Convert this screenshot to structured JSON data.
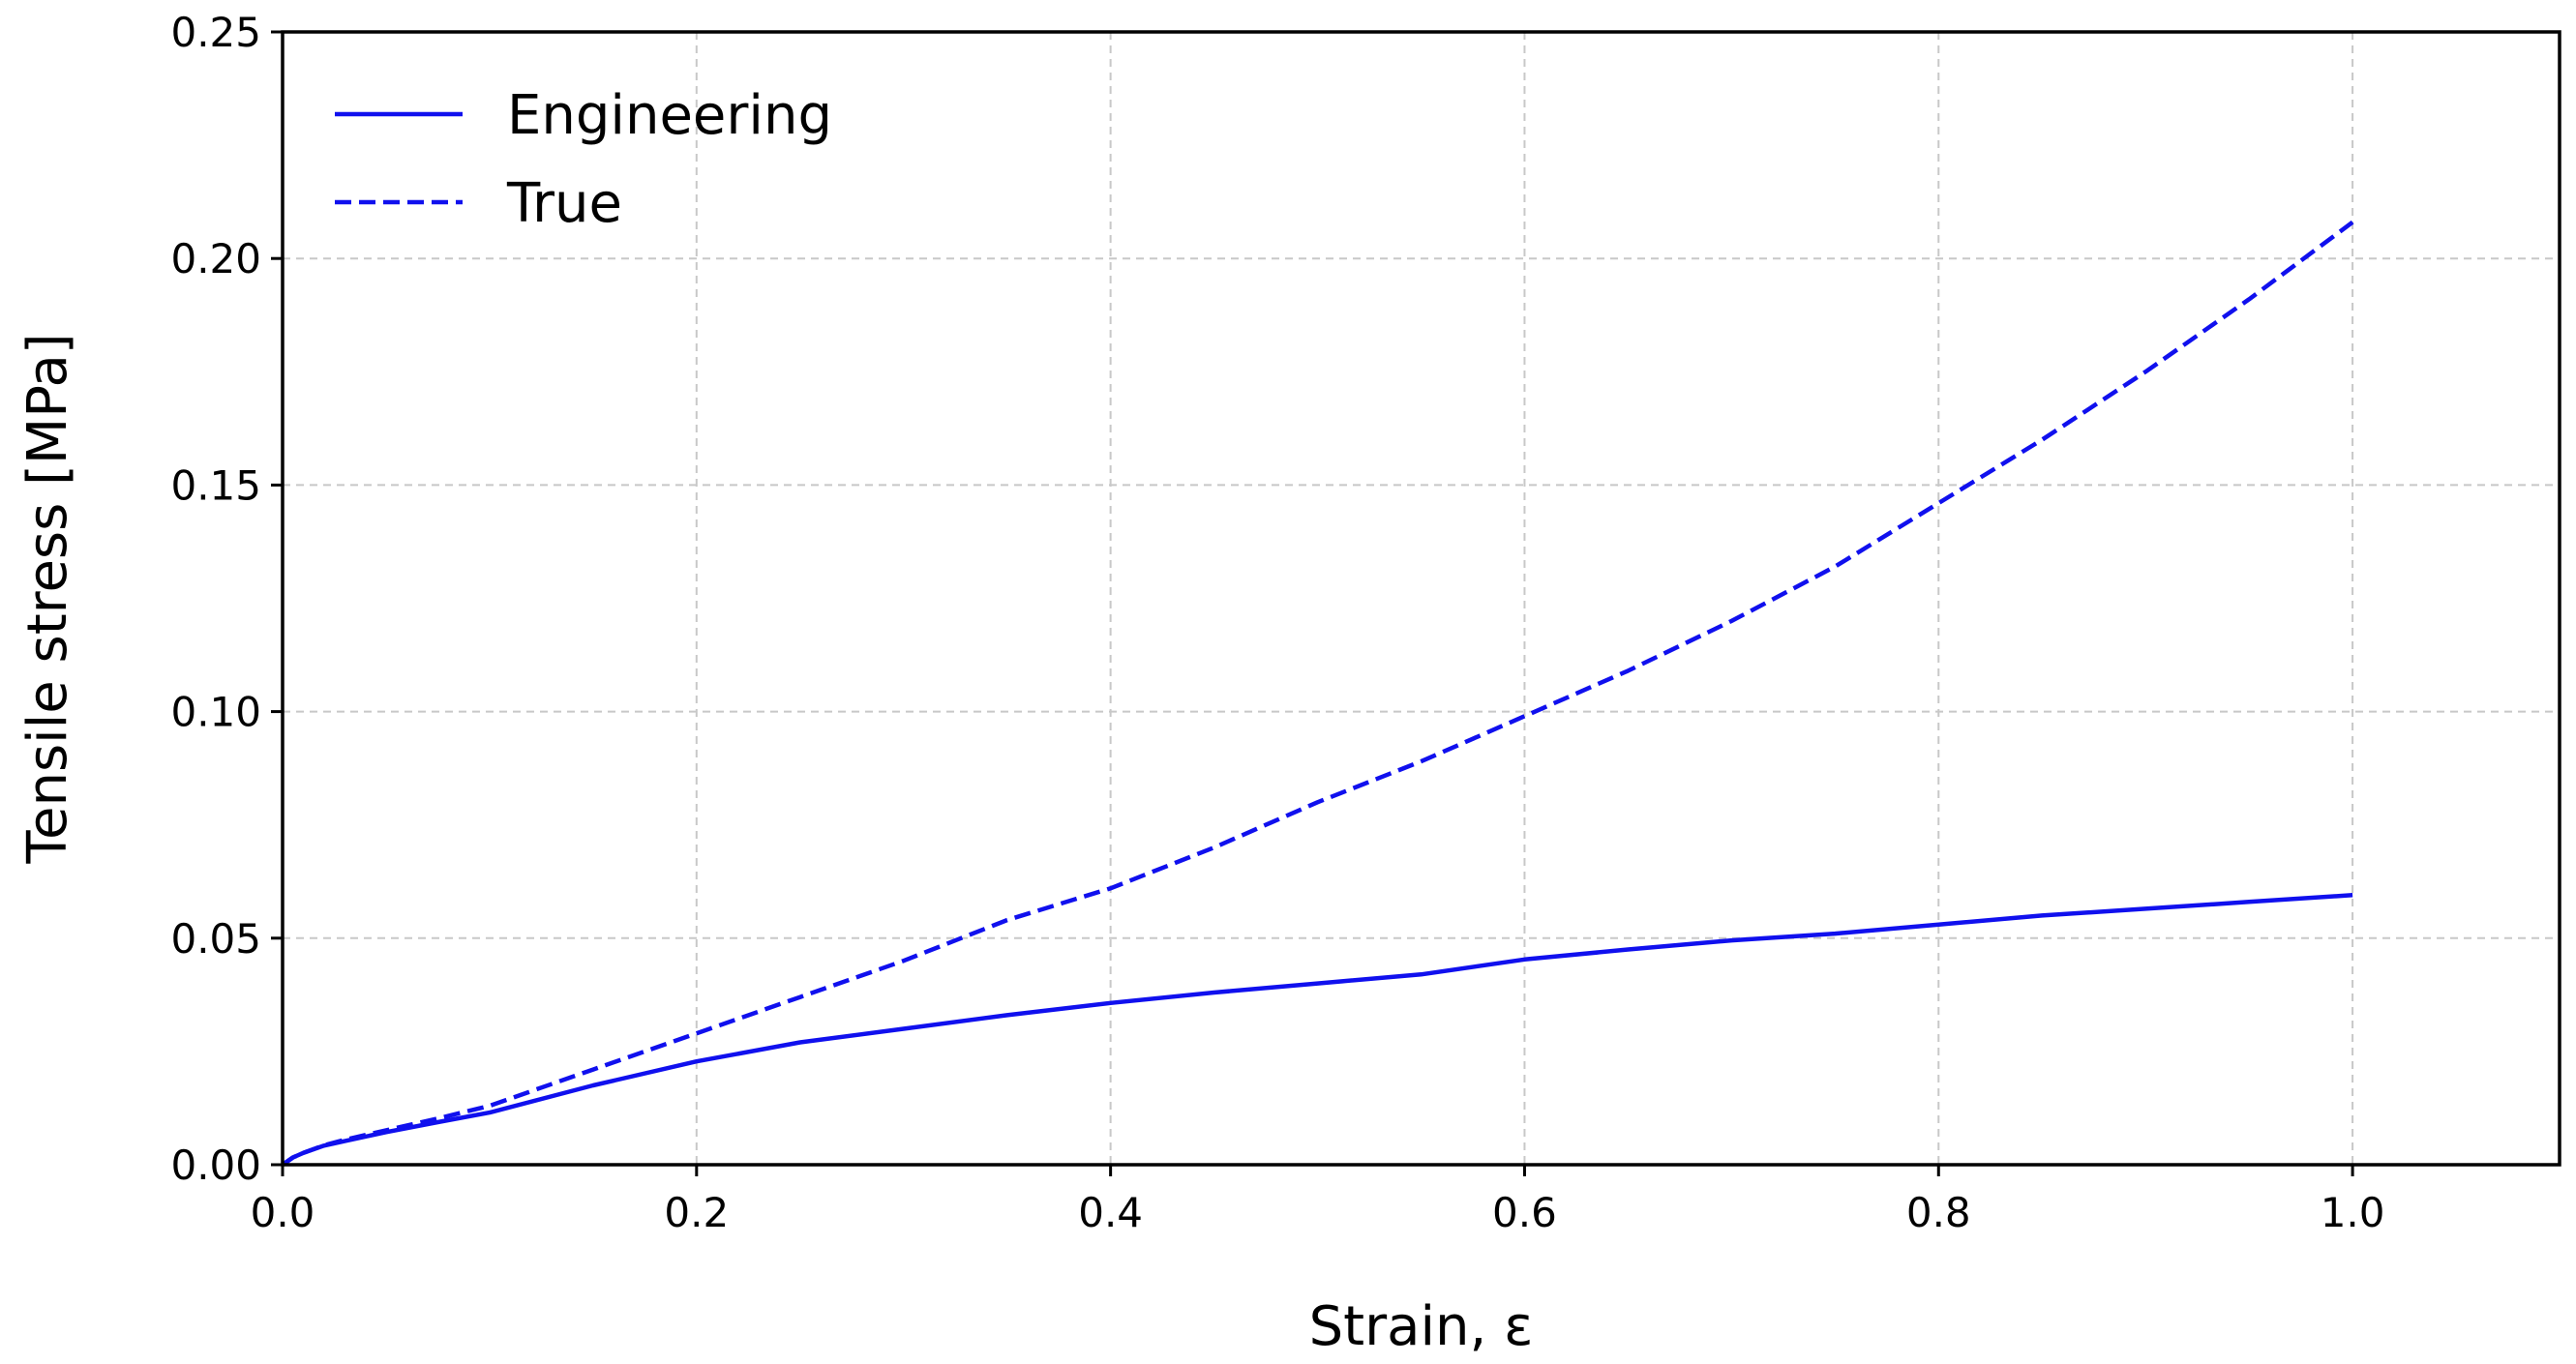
{
  "chart_data": {
    "type": "line",
    "title": "",
    "xlabel": "Strain, ε",
    "ylabel": "Tensile stress [MPa]",
    "xlim": [
      0.0,
      1.1
    ],
    "ylim": [
      0.0,
      0.25
    ],
    "grid": true,
    "legend_position": "top-left",
    "x_ticks": [
      0.0,
      0.2,
      0.4,
      0.6,
      0.8,
      1.0
    ],
    "x_tick_labels": [
      "0.0",
      "0.2",
      "0.4",
      "0.6",
      "0.8",
      "1.0"
    ],
    "y_ticks": [
      0.0,
      0.05,
      0.1,
      0.15,
      0.2,
      0.25
    ],
    "y_tick_labels": [
      "0.00",
      "0.05",
      "0.10",
      "0.15",
      "0.20",
      "0.25"
    ],
    "x": [
      0.0,
      0.005,
      0.01,
      0.02,
      0.03,
      0.05,
      0.075,
      0.1,
      0.15,
      0.2,
      0.25,
      0.3,
      0.35,
      0.4,
      0.45,
      0.5,
      0.55,
      0.6,
      0.65,
      0.7,
      0.75,
      0.8,
      0.85,
      0.9,
      0.95,
      1.0
    ],
    "series": [
      {
        "name": "Engineering",
        "color": "#1010ee",
        "style": "solid",
        "values": [
          0.0,
          0.0016,
          0.0026,
          0.0042,
          0.0052,
          0.0072,
          0.0094,
          0.0115,
          0.0175,
          0.0228,
          0.027,
          0.03,
          0.033,
          0.0357,
          0.038,
          0.04,
          0.042,
          0.0453,
          0.0475,
          0.0495,
          0.051,
          0.053,
          0.055,
          0.0565,
          0.058,
          0.0595
        ]
      },
      {
        "name": "True",
        "color": "#1010ee",
        "style": "dashed",
        "values": [
          0.0,
          0.0016,
          0.0026,
          0.0043,
          0.0055,
          0.0076,
          0.0102,
          0.013,
          0.021,
          0.029,
          0.037,
          0.045,
          0.054,
          0.061,
          0.07,
          0.08,
          0.089,
          0.099,
          0.109,
          0.12,
          0.132,
          0.146,
          0.16,
          0.175,
          0.191,
          0.208
        ]
      }
    ]
  }
}
